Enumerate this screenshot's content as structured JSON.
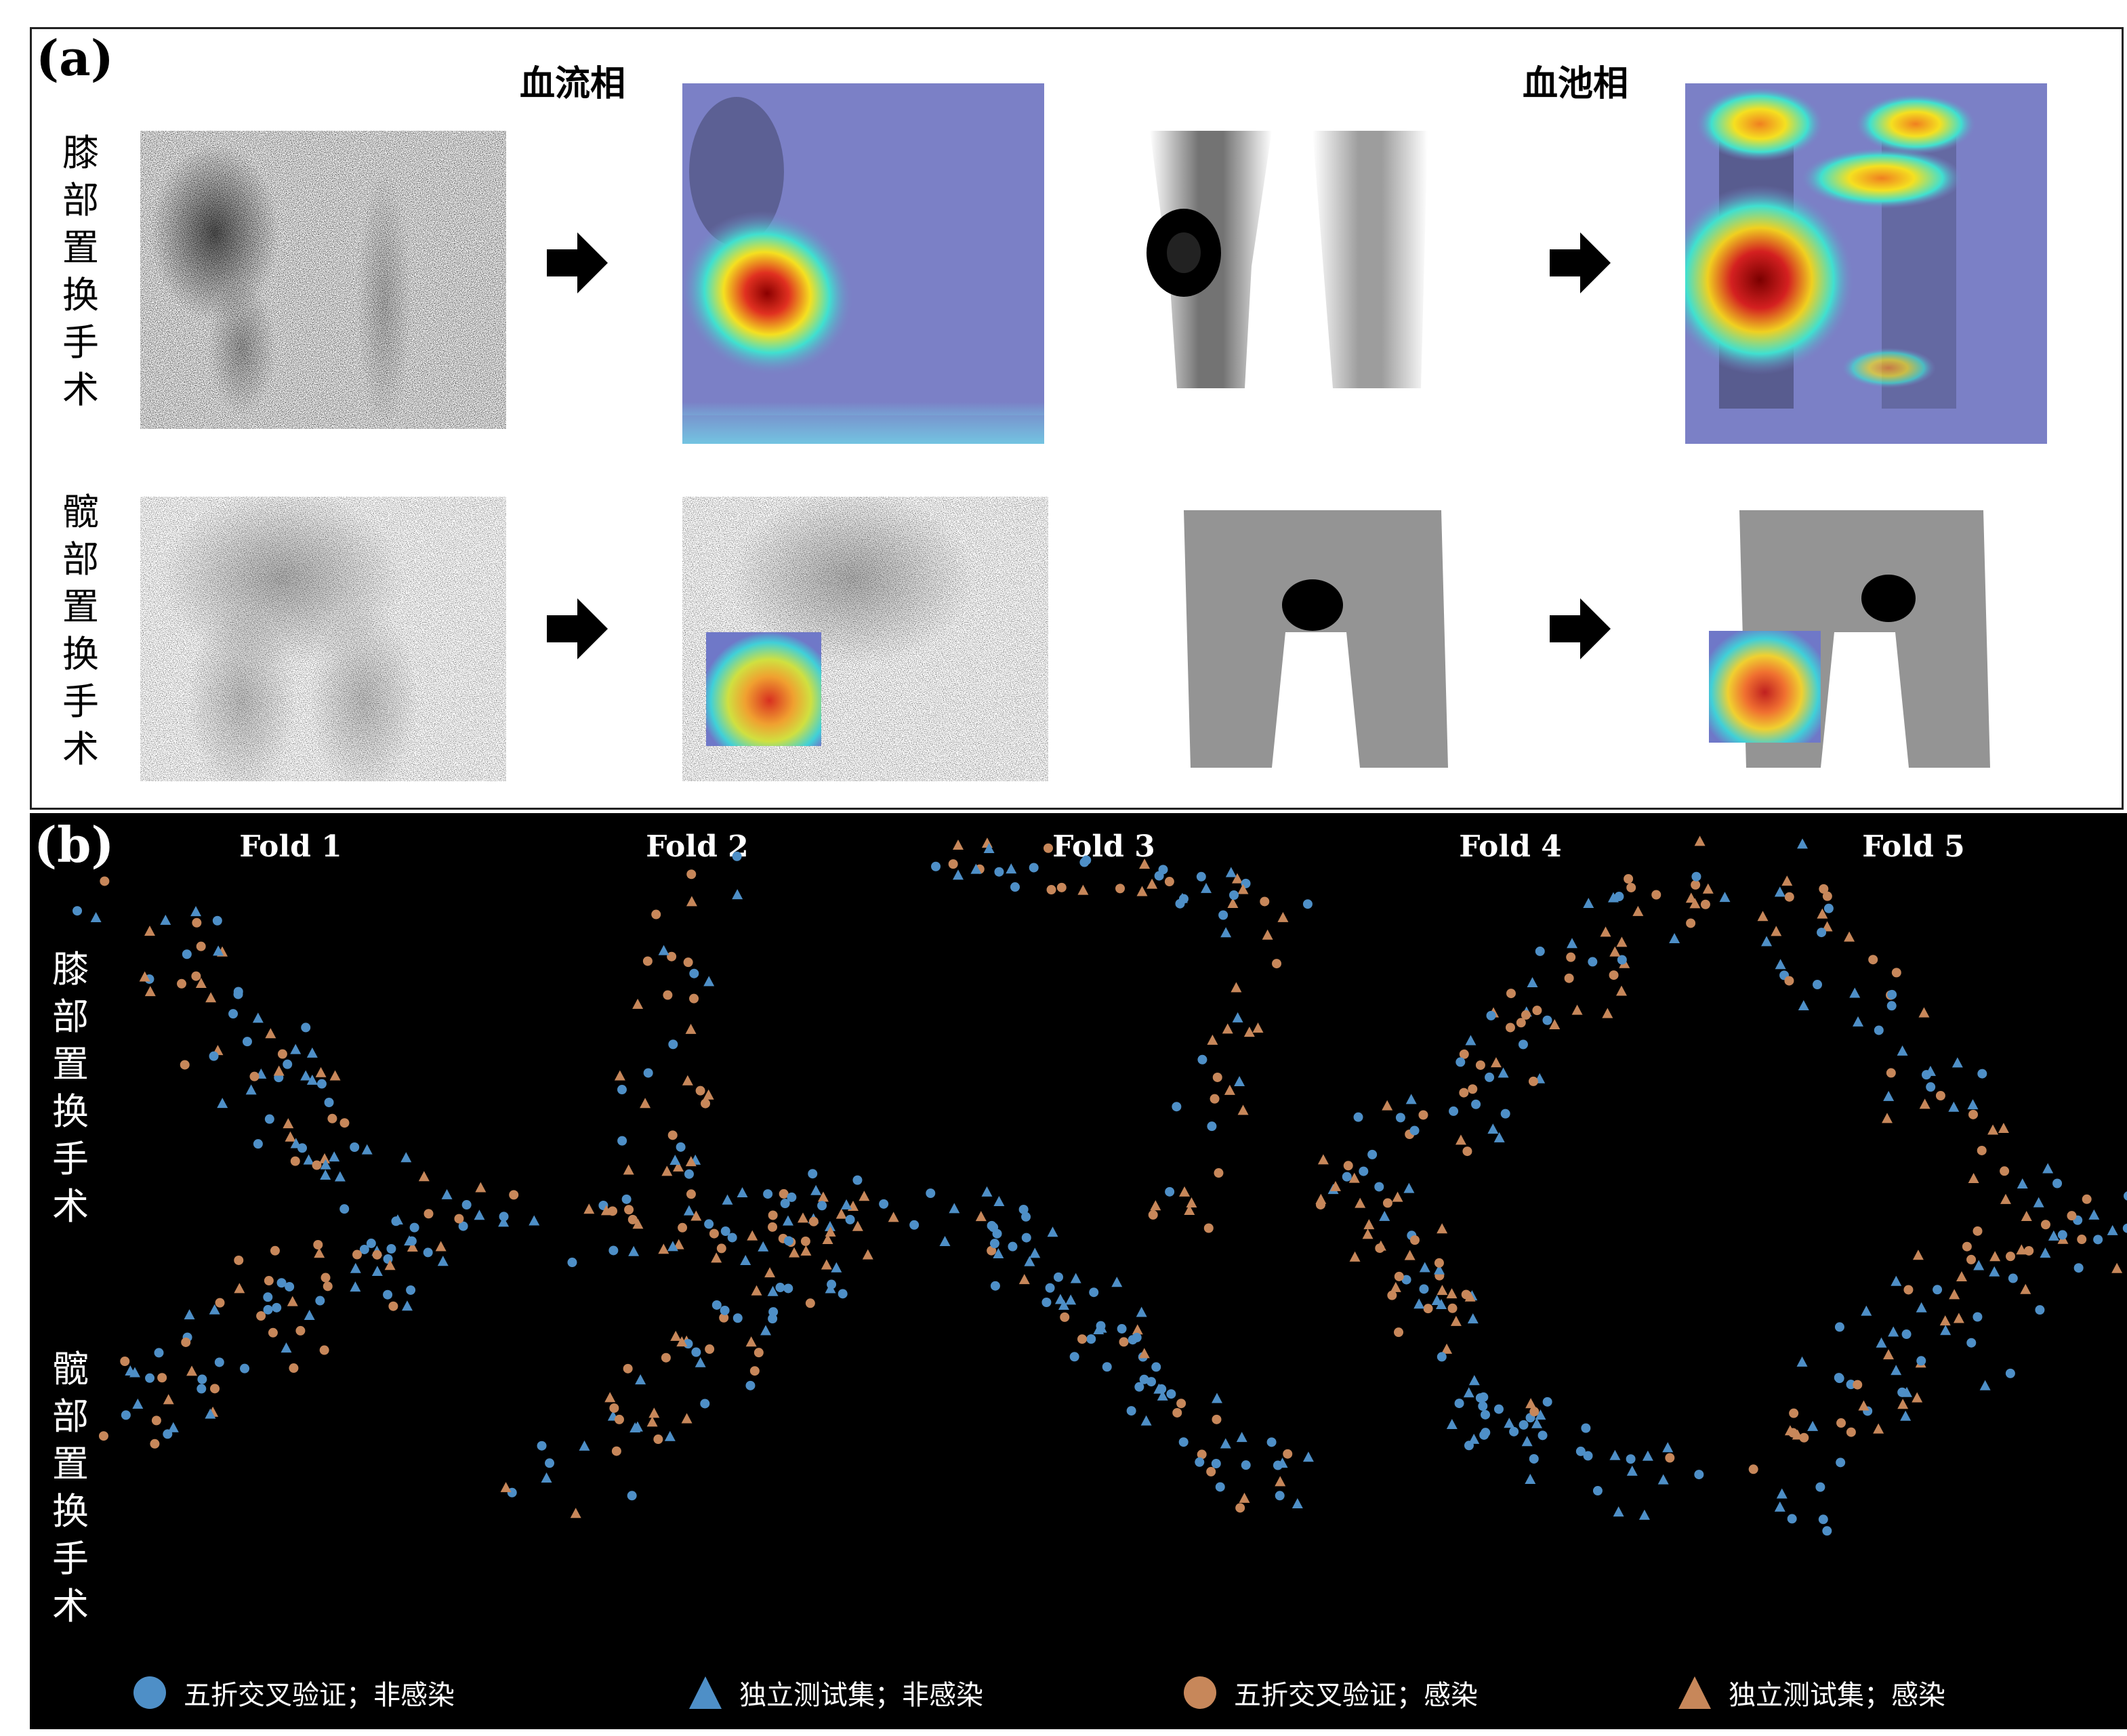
{
  "panel_a": {
    "label": "(a)",
    "phase_titles": [
      "血流相",
      "血池相"
    ],
    "row_labels": [
      "膝部置换手术",
      "髋部置换手术"
    ]
  },
  "panel_b": {
    "label": "(b)",
    "fold_titles": [
      "Fold 1",
      "Fold 2",
      "Fold 3",
      "Fold 4",
      "Fold 5"
    ],
    "row_labels": [
      "膝部置换手术",
      "髋部置换手术"
    ],
    "legend": [
      {
        "label": "五折交叉验证；非感染",
        "marker": "circle",
        "color": "#4e8fc7"
      },
      {
        "label": "独立测试集；非感染",
        "marker": "triangle",
        "color": "#4e8fc7"
      },
      {
        "label": "五折交叉验证；感染",
        "marker": "circle",
        "color": "#c7875a"
      },
      {
        "label": "独立测试集；感染",
        "marker": "triangle",
        "color": "#c7875a"
      }
    ]
  },
  "colors": {
    "non_infected": "#4e8fc7",
    "infected": "#c7875a",
    "heatmap_bg": "#7b80c6"
  }
}
